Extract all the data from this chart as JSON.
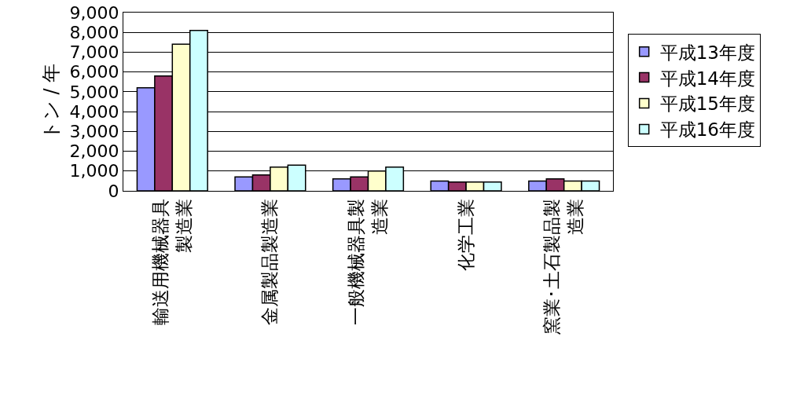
{
  "chart_data": {
    "type": "bar",
    "ylabel": "トン / 年",
    "categories": [
      "輸送用機械器具製造業",
      "金属製品製造業",
      "一般機械器具製造業",
      "化学工業",
      "窯業･土石製品製造業"
    ],
    "series": [
      {
        "name": "平成13年度",
        "color": "#9999ff",
        "values": [
          5200,
          700,
          600,
          500,
          500
        ]
      },
      {
        "name": "平成14年度",
        "color": "#993366",
        "values": [
          5800,
          800,
          700,
          450,
          600
        ]
      },
      {
        "name": "平成15年度",
        "color": "#ffffcc",
        "values": [
          7400,
          1200,
          1000,
          450,
          500
        ]
      },
      {
        "name": "平成16年度",
        "color": "#ccffff",
        "values": [
          8100,
          1300,
          1200,
          450,
          500
        ]
      }
    ],
    "ylim": [
      0,
      9000
    ],
    "yticks": [
      0,
      {
        "value": 1000,
        "label": "1,000"
      },
      {
        "value": 2000,
        "label": "2,000"
      },
      {
        "value": 3000,
        "label": "3,000"
      },
      {
        "value": 4000,
        "label": "4,000"
      },
      {
        "value": 5000,
        "label": "5,000"
      },
      {
        "value": 6000,
        "label": "6,000"
      },
      {
        "value": 7000,
        "label": "7,000"
      },
      {
        "value": 8000,
        "label": "8,000"
      },
      {
        "value": 9000,
        "label": "9,000"
      }
    ],
    "grid": "y",
    "legend": "right"
  }
}
